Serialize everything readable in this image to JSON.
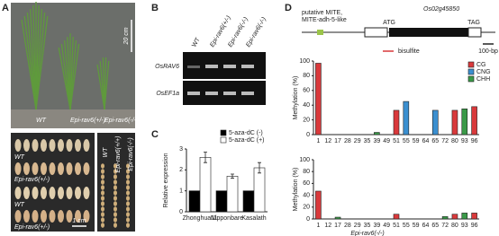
{
  "panel_a": {
    "label": "A",
    "scale_plant": "20 cm",
    "plants": [
      "WT",
      "Epi-rav6(+/-)",
      "Epi-rav6(-/-)"
    ],
    "seeds": [
      "WT",
      "Epi-rav6(+/-)",
      "WT",
      "Epi-rav6(+/-)"
    ],
    "scale_seed": "1 cm",
    "panicles": [
      "WT",
      "Epi-rav6(+/+)",
      "Epi-rav6(-/-)"
    ]
  },
  "panel_b": {
    "label": "B",
    "lanes": [
      "WT",
      "Epi-rav6(+/-)",
      "Epi-rav6(-/-)",
      "Epi-rav6(-/-)"
    ],
    "genes": [
      "OsRAV6",
      "OsEF1a"
    ]
  },
  "panel_c": {
    "label": "C"
  },
  "panel_d": {
    "label": "D",
    "element": [
      "putative MITE,",
      "MITE-adh-5-like"
    ],
    "gene": "Os02g45850",
    "start": "ATG",
    "stop": "TAG",
    "scale": "100-bp",
    "probe": "bisulfite"
  },
  "chart_data": [
    {
      "type": "bar",
      "y_label": "Relative expression",
      "categories": [
        "Zhonghua11",
        "Nipponbare",
        "Kasalath"
      ],
      "series": [
        {
          "name": "5-aza-dC (-)",
          "color": "#000000",
          "values": [
            1,
            1,
            1
          ]
        },
        {
          "name": "5-aza-dC (+)",
          "color": "#ffffff",
          "values": [
            2.6,
            1.7,
            2.1
          ],
          "errors": [
            0.25,
            0.1,
            0.25
          ]
        }
      ],
      "ylim": [
        0,
        3
      ],
      "yticks": [
        0,
        1,
        2,
        3
      ]
    },
    {
      "type": "bar",
      "y_label": "Methylation (%)",
      "categories": [
        "1",
        "12",
        "17",
        "28",
        "29",
        "35",
        "39",
        "49",
        "51",
        "55",
        "59",
        "64",
        "65",
        "72",
        "80",
        "93",
        "96"
      ],
      "series": [
        {
          "name": "CG",
          "color": "#d9393b",
          "values": [
            97,
            null,
            null,
            null,
            null,
            null,
            null,
            null,
            33,
            null,
            null,
            null,
            null,
            null,
            33,
            null,
            38
          ]
        },
        {
          "name": "CNG",
          "color": "#3b8fd0",
          "values": [
            null,
            null,
            null,
            null,
            null,
            null,
            null,
            null,
            null,
            45,
            null,
            null,
            33,
            null,
            null,
            null,
            null
          ]
        },
        {
          "name": "CHH",
          "color": "#3a9a48",
          "values": [
            null,
            0,
            0,
            0,
            0,
            0,
            3,
            0,
            null,
            null,
            0,
            0,
            null,
            0,
            null,
            35,
            null
          ]
        }
      ],
      "ylim": [
        0,
        100
      ],
      "yticks": [
        0,
        20,
        40,
        60,
        80,
        100
      ]
    },
    {
      "type": "bar",
      "y_label": "Methylation (%)",
      "x_label": "Epi-rav6(-/-)",
      "categories": [
        "1",
        "12",
        "17",
        "28",
        "29",
        "35",
        "39",
        "49",
        "51",
        "55",
        "59",
        "64",
        "65",
        "72",
        "80",
        "93",
        "96"
      ],
      "series": [
        {
          "name": "CG",
          "color": "#d9393b",
          "values": [
            47,
            null,
            null,
            null,
            null,
            null,
            null,
            null,
            8,
            null,
            null,
            null,
            null,
            null,
            8,
            null,
            10
          ]
        },
        {
          "name": "CNG",
          "color": "#3b8fd0",
          "values": [
            null,
            null,
            null,
            null,
            null,
            null,
            null,
            null,
            null,
            0,
            null,
            null,
            0,
            null,
            null,
            null,
            null
          ]
        },
        {
          "name": "CHH",
          "color": "#3a9a48",
          "values": [
            null,
            0,
            3,
            0,
            0,
            0,
            0,
            0,
            null,
            null,
            0,
            0,
            null,
            4,
            null,
            10,
            null
          ]
        }
      ],
      "ylim": [
        0,
        100
      ],
      "yticks": [
        0,
        20,
        40,
        60,
        80,
        100
      ]
    }
  ]
}
